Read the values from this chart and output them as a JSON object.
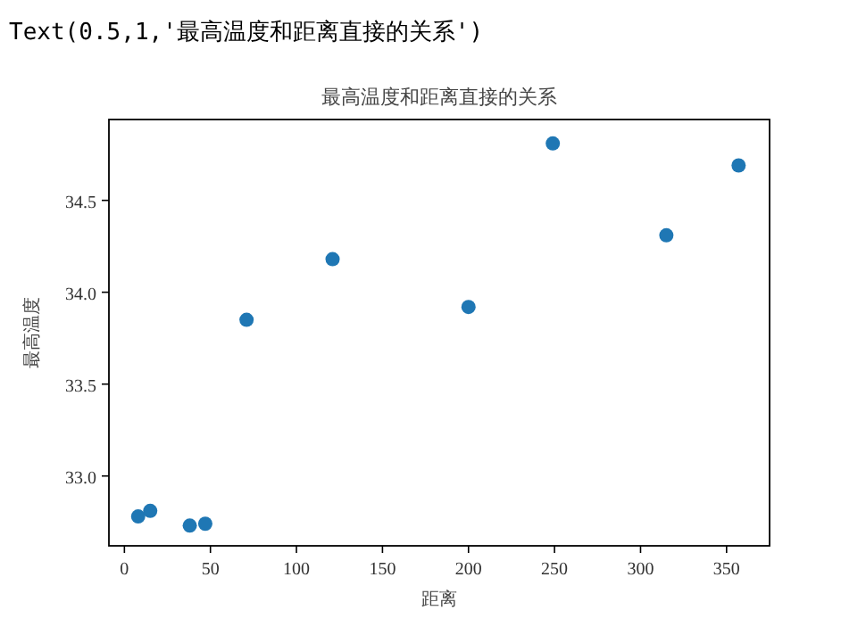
{
  "chart_data": {
    "type": "scatter",
    "title": "最高温度和距离直接的关系",
    "xlabel": "距离",
    "ylabel": "最高温度",
    "annotations": [
      "Text(0.5,1,'最高温度和距离直接的关系')"
    ],
    "x": [
      8,
      15,
      38,
      47,
      71,
      121,
      200,
      249,
      315,
      357
    ],
    "series": [
      {
        "color": "#1f77b4",
        "values": [
          32.78,
          32.81,
          32.73,
          32.74,
          33.85,
          34.18,
          33.92,
          34.81,
          34.31,
          34.69
        ]
      }
    ],
    "xlim": [
      -9,
      375
    ],
    "ylim": [
      32.62,
      34.94
    ],
    "xticks": [
      0,
      50,
      100,
      150,
      200,
      250,
      300,
      350
    ],
    "yticks": [
      {
        "value": 33,
        "label": "33.0"
      },
      {
        "value": 33.5,
        "label": "33.5"
      },
      {
        "value": 34,
        "label": "34.0"
      },
      {
        "value": 34.5,
        "label": "34.5"
      }
    ],
    "marker": "circle"
  }
}
